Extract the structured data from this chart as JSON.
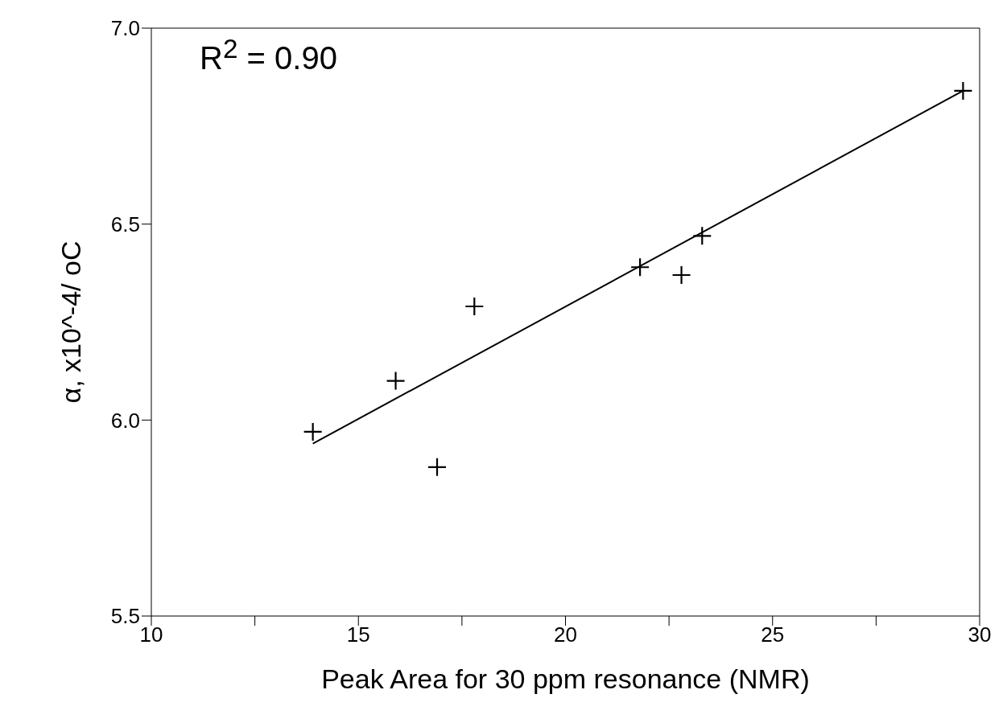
{
  "chart_data": {
    "type": "scatter",
    "xlabel": "Peak Area for 30 ppm resonance (NMR)",
    "ylabel": "α, x10^-4/ oC",
    "annotations": [
      "R$^{2}$ = 0.90"
    ],
    "xlim": [
      10,
      30
    ],
    "xticks": [
      10,
      {
        "value": 12.5,
        "label": null
      },
      15,
      {
        "value": 17.5,
        "label": null
      },
      20,
      {
        "value": 22.5,
        "label": null
      },
      25,
      {
        "value": 27.5,
        "label": null
      },
      30
    ],
    "ylim": [
      5.5,
      7.0
    ],
    "yticks": [
      {
        "value": 5.5,
        "label": "5.5"
      },
      {
        "value": 6.0,
        "label": "6.0"
      },
      {
        "value": 6.5,
        "label": "6.5"
      },
      {
        "value": 7.0,
        "label": "7.0"
      }
    ],
    "grid": false,
    "marker": "cross",
    "color": "#000000",
    "x": [
      13.9,
      15.9,
      16.9,
      17.8,
      21.8,
      22.8,
      23.3,
      29.6
    ],
    "values": [
      5.97,
      6.1,
      5.88,
      6.29,
      6.39,
      6.37,
      6.47,
      6.84
    ],
    "series": [
      {
        "type": "line",
        "color": "#000000",
        "x": [
          13.9,
          29.6
        ],
        "values": [
          5.94,
          6.84
        ],
        "line_style": "solid",
        "marker": "none"
      }
    ]
  }
}
